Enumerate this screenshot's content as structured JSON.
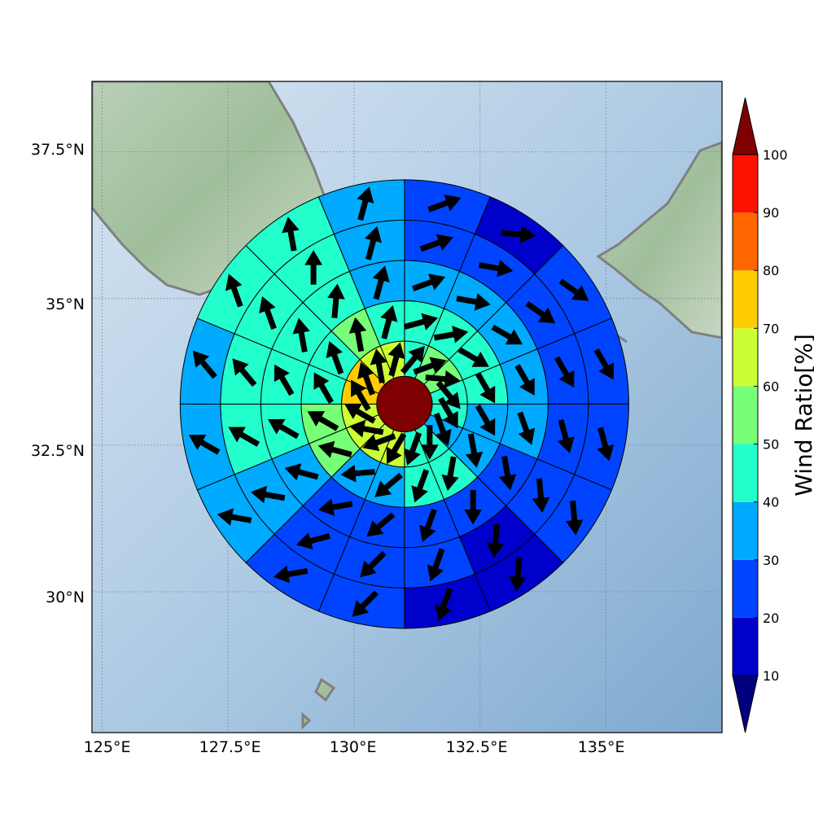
{
  "chart_data": {
    "type": "heatmap",
    "subtype": "polar sector wind-ratio map with wind direction arrows",
    "title": "",
    "xlabel": "",
    "ylabel": "",
    "x_range_deg_E": [
      124.8,
      137.3
    ],
    "y_range_deg_N": [
      27.6,
      38.7
    ],
    "grid": true,
    "x_tick_labels": [
      "125°E",
      "127.5°E",
      "130°E",
      "132.5°E",
      "135°E"
    ],
    "x_tick_values": [
      125,
      127.5,
      130,
      132.5,
      135
    ],
    "y_tick_labels": [
      "37.5°N",
      "35°N",
      "32.5°N",
      "30°N"
    ],
    "y_tick_values": [
      37.5,
      35,
      32.5,
      30
    ],
    "center_lon": 131.0,
    "center_lat": 33.2,
    "center_color": "#7f0000",
    "ring_radii_deg": [
      0.55,
      1.25,
      2.05,
      2.85,
      3.65,
      4.45
    ],
    "sector_count": 16,
    "sector_start_compass_deg": 0,
    "sector_order": "clockwise from north",
    "cells": [
      {
        "ring": 1,
        "ratio": [
          45,
          55,
          55,
          45,
          45,
          35,
          40,
          45,
          65,
          65,
          65,
          65,
          70,
          70,
          65,
          65
        ],
        "arrow_to_deg": [
          40,
          70,
          95,
          140,
          150,
          160,
          180,
          200,
          210,
          250,
          280,
          300,
          330,
          340,
          350,
          15
        ]
      },
      {
        "ring": 2,
        "ratio": [
          45,
          45,
          45,
          45,
          35,
          35,
          45,
          45,
          35,
          35,
          55,
          55,
          45,
          45,
          55,
          45
        ],
        "arrow_to_deg": [
          75,
          80,
          120,
          150,
          150,
          170,
          190,
          200,
          230,
          265,
          285,
          300,
          330,
          340,
          350,
          15
        ]
      },
      {
        "ring": 3,
        "ratio": [
          35,
          35,
          35,
          35,
          35,
          25,
          25,
          25,
          25,
          25,
          35,
          45,
          45,
          45,
          45,
          35
        ],
        "arrow_to_deg": [
          70,
          100,
          120,
          150,
          160,
          170,
          180,
          200,
          230,
          260,
          285,
          300,
          330,
          350,
          5,
          15
        ]
      },
      {
        "ring": 4,
        "ratio": [
          25,
          25,
          25,
          25,
          25,
          25,
          15,
          25,
          25,
          25,
          35,
          45,
          45,
          45,
          45,
          35
        ],
        "arrow_to_deg": [
          70,
          100,
          125,
          150,
          165,
          175,
          185,
          200,
          225,
          255,
          280,
          300,
          320,
          340,
          360,
          15
        ]
      },
      {
        "ring": 5,
        "ratio": [
          25,
          15,
          25,
          25,
          25,
          25,
          15,
          15,
          25,
          25,
          35,
          35,
          35,
          45,
          45,
          35
        ],
        "arrow_to_deg": [
          70,
          95,
          125,
          150,
          165,
          175,
          185,
          200,
          225,
          260,
          280,
          300,
          320,
          340,
          350,
          15
        ]
      }
    ],
    "colorbar": {
      "label": "Wind Ratio[%]",
      "tick_labels": [
        "10",
        "20",
        "30",
        "40",
        "50",
        "60",
        "70",
        "80",
        "90",
        "100"
      ],
      "levels": [
        10,
        20,
        30,
        40,
        50,
        60,
        70,
        80,
        90,
        100
      ],
      "bin_colors": [
        "#0000cc",
        "#0044ff",
        "#00aaff",
        "#22ffcc",
        "#77ff77",
        "#ccff33",
        "#ffcc00",
        "#ff6600",
        "#ff1100"
      ],
      "under_color": "#00007f",
      "over_color": "#7f0000",
      "extend": "both"
    }
  }
}
